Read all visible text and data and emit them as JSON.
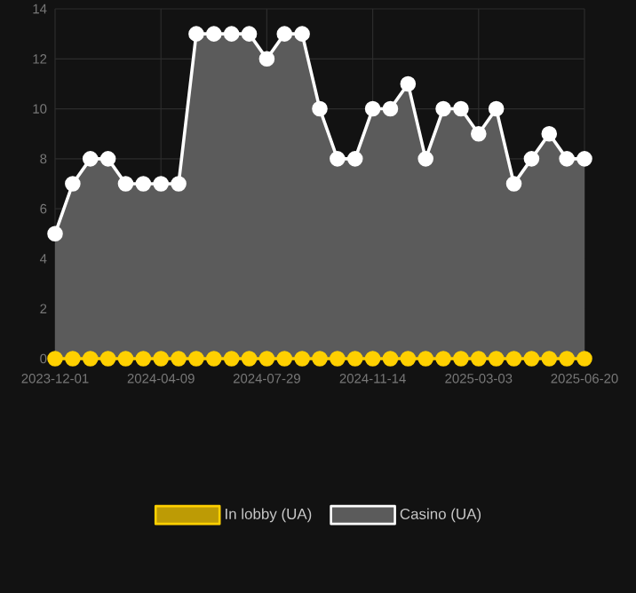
{
  "chart_data": {
    "type": "area",
    "categories": [
      "2023-12-01",
      null,
      null,
      null,
      null,
      null,
      "2024-04-09",
      null,
      null,
      null,
      null,
      null,
      "2024-07-29",
      null,
      null,
      null,
      null,
      null,
      "2024-11-14",
      null,
      null,
      null,
      null,
      null,
      "2025-03-03",
      null,
      null,
      null,
      null,
      null,
      "2025-06-20"
    ],
    "series": [
      {
        "name": "In lobby (UA)",
        "type": "line",
        "color": "#ffd000",
        "values": [
          0,
          0,
          0,
          0,
          0,
          0,
          0,
          0,
          0,
          0,
          0,
          0,
          0,
          0,
          0,
          0,
          0,
          0,
          0,
          0,
          0,
          0,
          0,
          0,
          0,
          0,
          0,
          0,
          0,
          0,
          0
        ]
      },
      {
        "name": "Casino (UA)",
        "color": "#ffffff",
        "values": [
          5,
          7,
          8,
          8,
          7,
          7,
          7,
          7,
          13,
          13,
          13,
          13,
          12,
          13,
          13,
          10,
          8,
          8,
          10,
          10,
          11,
          8,
          10,
          10,
          9,
          10,
          7,
          8,
          9,
          8,
          8
        ]
      }
    ],
    "ylim": [
      0,
      14
    ],
    "yticks": [
      0,
      2,
      4,
      6,
      8,
      10,
      12,
      14
    ],
    "grid": true,
    "legend": "bottom",
    "marker": "circle"
  }
}
